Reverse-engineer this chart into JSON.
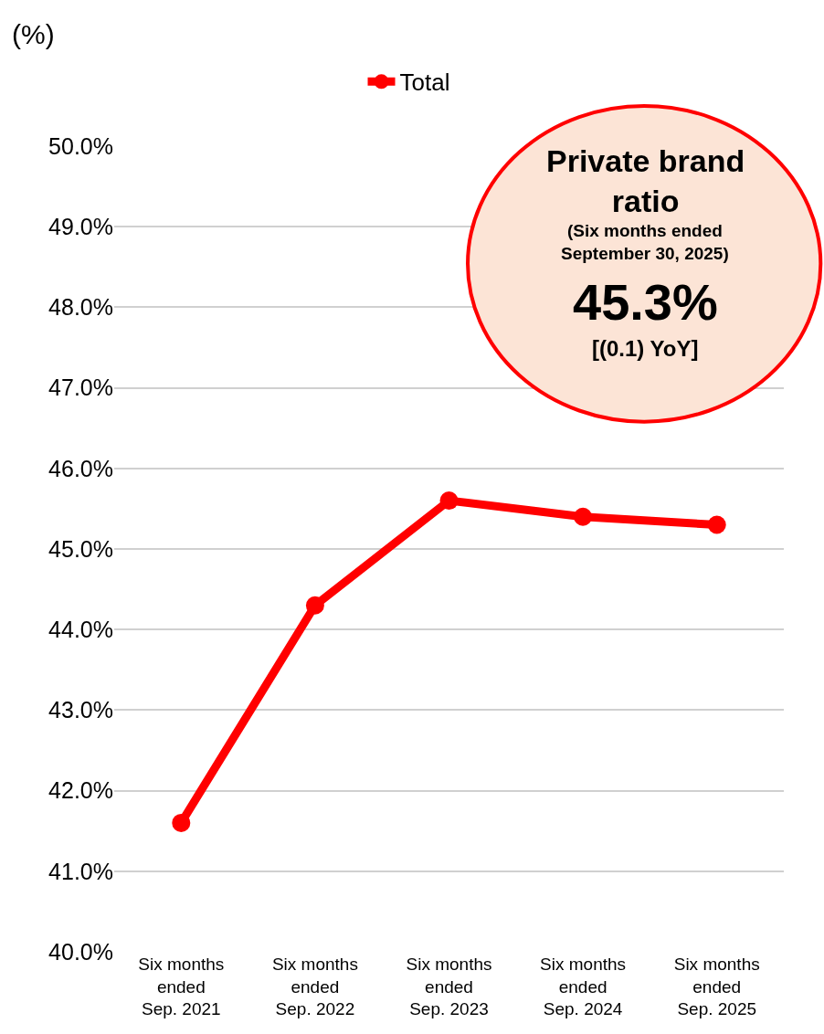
{
  "chart_data": {
    "type": "line",
    "ylabel": "(%)",
    "categories": [
      "Six months\nended\nSep. 2021",
      "Six months\nended\nSep. 2022",
      "Six months\nended\nSep. 2023",
      "Six months\nended\nSep. 2024",
      "Six months\nended\nSep. 2025"
    ],
    "series": [
      {
        "name": "Total",
        "color": "#ff0000",
        "values": [
          41.6,
          44.3,
          45.6,
          45.4,
          45.3
        ]
      }
    ],
    "ylim": [
      40,
      50
    ],
    "yticks": [
      {
        "value": 40,
        "label": "40.0%"
      },
      {
        "value": 41,
        "label": "41.0%"
      },
      {
        "value": 42,
        "label": "42.0%"
      },
      {
        "value": 43,
        "label": "43.0%"
      },
      {
        "value": 44,
        "label": "44.0%"
      },
      {
        "value": 45,
        "label": "45.0%"
      },
      {
        "value": 46,
        "label": "46.0%"
      },
      {
        "value": 47,
        "label": "47.0%"
      },
      {
        "value": 48,
        "label": "48.0%"
      },
      {
        "value": 49,
        "label": "49.0%"
      },
      {
        "value": 50,
        "label": "50.0%"
      }
    ],
    "grid": "y",
    "legend": "top",
    "marker": "circle",
    "line_style": "solid",
    "annotations": [
      "Private brand\nratio",
      "(Six months ended\nSeptember 30, 2025)",
      "45.3%",
      "[(0.1) YoY]"
    ]
  }
}
